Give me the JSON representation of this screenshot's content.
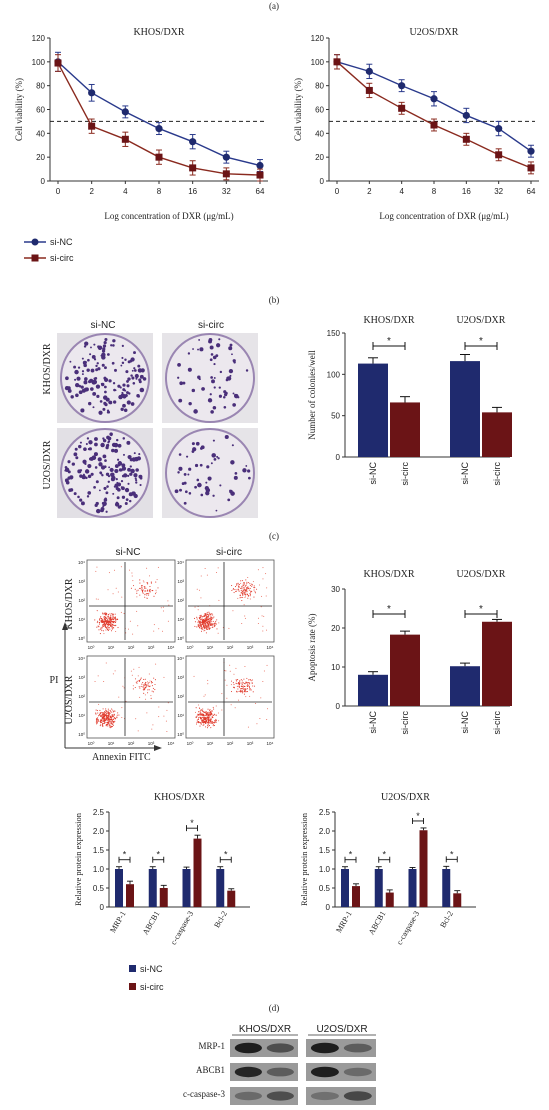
{
  "panel_labels": [
    "(a)",
    "(b)",
    "(c)",
    "(d)"
  ],
  "colors": {
    "nc": "#1f2a6e",
    "circ": "#6b1416",
    "ncLine": "#2a3a8c",
    "circLine": "#8a2a1f"
  },
  "blot": {
    "col_titles": [
      "KHOS/DXR",
      "U2OS/DXR"
    ],
    "rows": [
      "MRP-1",
      "ABCB1",
      "c-caspase-3"
    ]
  },
  "plates": {
    "col_titles": [
      "si-NC",
      "si-circ"
    ],
    "row_labels": [
      "KHOS/DXR",
      "U2OS/DXR"
    ]
  },
  "flow": {
    "col_titles": [
      "si-NC",
      "si-circ"
    ],
    "row_labels": [
      "KHOS/DXR",
      "U2OS/DXR"
    ],
    "ylabel": "PI",
    "xlabel": "Annexin FITC",
    "tick_labels": [
      "10⁰",
      "10¹",
      "10²",
      "10³",
      "10⁴"
    ]
  },
  "chart_data": [
    {
      "id": "viab-khos",
      "type": "line",
      "title": "KHOS/DXR",
      "categories": [
        "0",
        "2",
        "4",
        "8",
        "16",
        "32",
        "64"
      ],
      "ylabel": "Cell viability (%)",
      "xlabel": "Log concentration of DXR (μg/mL)",
      "ylim": [
        0,
        120
      ],
      "yticks": [
        0,
        20,
        40,
        60,
        80,
        100,
        120
      ],
      "threshold": 50,
      "series": [
        {
          "name": "si-NC",
          "values": [
            100,
            74,
            58,
            44,
            33,
            20,
            13
          ],
          "err": [
            8,
            7,
            5,
            5,
            6,
            5,
            5
          ]
        },
        {
          "name": "si-circ",
          "values": [
            99,
            46,
            35,
            20,
            11,
            6,
            5
          ],
          "err": [
            7,
            6,
            6,
            6,
            6,
            5,
            5
          ]
        }
      ]
    },
    {
      "id": "viab-u2os",
      "type": "line",
      "title": "U2OS/DXR",
      "categories": [
        "0",
        "2",
        "4",
        "8",
        "16",
        "32",
        "64"
      ],
      "ylabel": "Cell viability (%)",
      "xlabel": "Log concentration of DXR (μg/mL)",
      "ylim": [
        0,
        120
      ],
      "yticks": [
        0,
        20,
        40,
        60,
        80,
        100,
        120
      ],
      "threshold": 50,
      "series": [
        {
          "name": "si-NC",
          "values": [
            100,
            92,
            80,
            69,
            55,
            44,
            25
          ],
          "err": [
            6,
            6,
            5,
            6,
            6,
            6,
            5
          ]
        },
        {
          "name": "si-circ",
          "values": [
            100,
            76,
            61,
            47,
            35,
            22,
            11
          ],
          "err": [
            6,
            6,
            5,
            5,
            5,
            5,
            5
          ]
        }
      ]
    },
    {
      "id": "colonies",
      "type": "bar",
      "ylabel": "Number of colonies/well",
      "ylim": [
        0,
        150
      ],
      "yticks": [
        0,
        50,
        100,
        150
      ],
      "groups": [
        {
          "title": "KHOS/DXR",
          "labels": [
            "si-NC",
            "si-circ"
          ],
          "values": [
            113,
            66
          ],
          "err": [
            7,
            7
          ]
        },
        {
          "title": "U2OS/DXR",
          "labels": [
            "si-NC",
            "si-circ"
          ],
          "values": [
            116,
            54
          ],
          "err": [
            8,
            6
          ]
        }
      ]
    },
    {
      "id": "apoptosis",
      "type": "bar",
      "ylabel": "Apoptosis rate (%)",
      "ylim": [
        0,
        30
      ],
      "yticks": [
        0,
        10,
        20,
        30
      ],
      "groups": [
        {
          "title": "KHOS/DXR",
          "labels": [
            "si-NC",
            "si-circ"
          ],
          "values": [
            8,
            18.3
          ],
          "err": [
            0.8,
            0.9
          ]
        },
        {
          "title": "U2OS/DXR",
          "labels": [
            "si-NC",
            "si-circ"
          ],
          "values": [
            10.2,
            21.6
          ],
          "err": [
            0.8,
            0.6
          ]
        }
      ]
    },
    {
      "id": "prot-khos",
      "type": "bar",
      "title": "KHOS/DXR",
      "ylabel": "Relative protein expression",
      "ylim": [
        0,
        2.5
      ],
      "yticks": [
        0,
        0.5,
        1.0,
        1.5,
        2.0,
        2.5
      ],
      "categories": [
        "MRP-1",
        "ABCB1",
        "c-caspase-3",
        "Bcl-2"
      ],
      "series": [
        {
          "name": "si-NC",
          "values": [
            1.0,
            1.0,
            1.0,
            1.0
          ],
          "err": [
            0.06,
            0.06,
            0.05,
            0.06
          ]
        },
        {
          "name": "si-circ",
          "values": [
            0.6,
            0.5,
            1.8,
            0.43
          ],
          "err": [
            0.08,
            0.07,
            0.09,
            0.05
          ]
        }
      ]
    },
    {
      "id": "prot-u2os",
      "type": "bar",
      "title": "U2OS/DXR",
      "ylabel": "Relative protein expression",
      "ylim": [
        0,
        2.5
      ],
      "yticks": [
        0,
        0.5,
        1.0,
        1.5,
        2.0,
        2.5
      ],
      "categories": [
        "MRP-1",
        "ABCB1",
        "c-caspase-3",
        "Bcl-2"
      ],
      "series": [
        {
          "name": "si-NC",
          "values": [
            1.0,
            1.0,
            1.0,
            1.0
          ],
          "err": [
            0.06,
            0.06,
            0.04,
            0.07
          ]
        },
        {
          "name": "si-circ",
          "values": [
            0.55,
            0.38,
            2.02,
            0.36
          ],
          "err": [
            0.06,
            0.07,
            0.06,
            0.07
          ]
        }
      ]
    }
  ],
  "legend_a": [
    "si-NC",
    "si-circ"
  ],
  "legend_d": [
    "si-NC",
    "si-circ"
  ],
  "sig_mark": "*"
}
